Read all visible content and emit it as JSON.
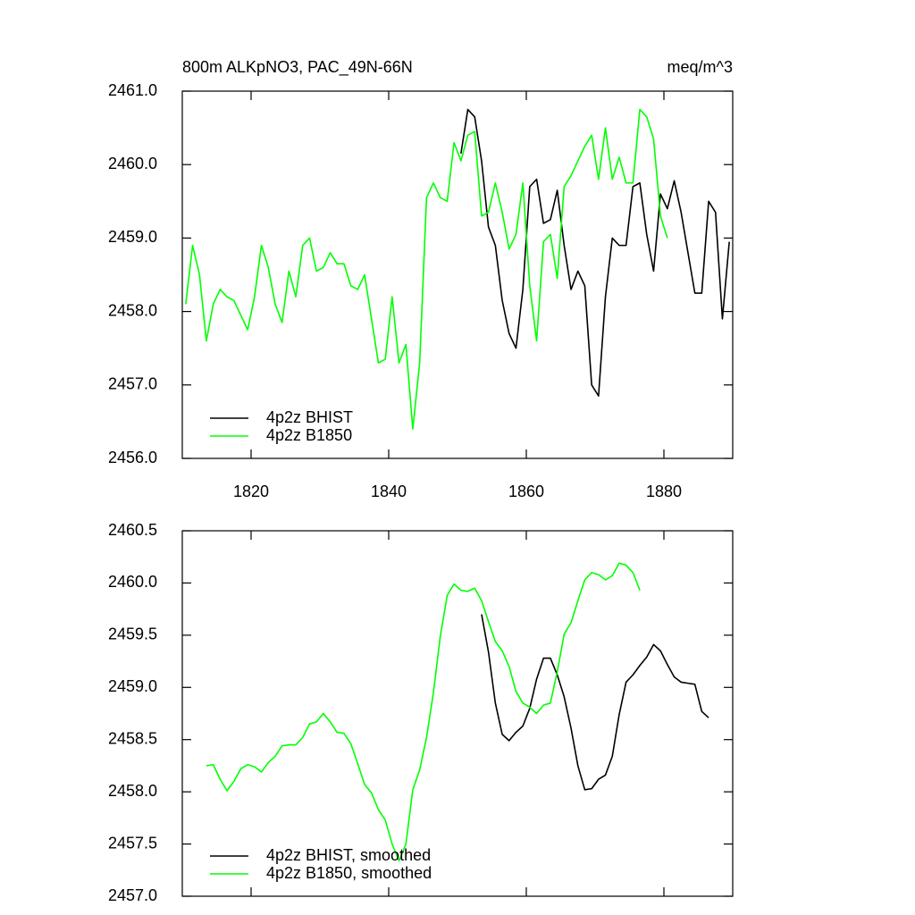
{
  "chart_data": [
    {
      "type": "line",
      "title": "800m ALKpNO3, PAC_49N-66N",
      "units": "meq/m^3",
      "xlim": [
        1810,
        1890
      ],
      "xticks": [
        1820,
        1840,
        1860,
        1880
      ],
      "xtick_labels": true,
      "ylim": [
        2456,
        2461
      ],
      "yticks": [
        {
          "value": 2456,
          "label": "2456.0"
        },
        {
          "value": 2457,
          "label": "2457.0"
        },
        {
          "value": 2458,
          "label": "2458.0"
        },
        {
          "value": 2459,
          "label": "2459.0"
        },
        {
          "value": 2460,
          "label": "2460.0"
        },
        {
          "value": 2461,
          "label": "2461.0"
        }
      ],
      "legend": "bottom-left",
      "series": [
        {
          "name": "4p2z BHIST",
          "color": "#000000",
          "x": [
            1850.5,
            1851.5,
            1852.5,
            1853.5,
            1854.5,
            1855.5,
            1856.5,
            1857.5,
            1858.5,
            1859.5,
            1860.5,
            1861.5,
            1862.5,
            1863.5,
            1864.5,
            1865.5,
            1866.5,
            1867.5,
            1868.5,
            1869.5,
            1870.5,
            1871.5,
            1872.5,
            1873.5,
            1874.5,
            1875.5,
            1876.5,
            1877.5,
            1878.5,
            1879.5,
            1880.5,
            1881.5,
            1882.5,
            1883.5,
            1884.5,
            1885.5,
            1886.5,
            1887.5,
            1888.5,
            1889.5
          ],
          "values": [
            2460.15,
            2460.75,
            2460.65,
            2460.05,
            2459.15,
            2458.9,
            2458.15,
            2457.7,
            2457.5,
            2458.3,
            2459.7,
            2459.8,
            2459.2,
            2459.25,
            2459.65,
            2458.9,
            2458.3,
            2458.55,
            2458.35,
            2457.0,
            2456.85,
            2458.2,
            2459.0,
            2458.9,
            2458.9,
            2459.7,
            2459.75,
            2459.05,
            2458.55,
            2459.6,
            2459.4,
            2459.78,
            2459.35,
            2458.8,
            2458.25,
            2458.25,
            2459.5,
            2459.35,
            2457.9,
            2458.95
          ]
        },
        {
          "name": "4p2z B1850",
          "color": "#00ff00",
          "x": [
            1810.5,
            1811.5,
            1812.5,
            1813.5,
            1814.5,
            1815.5,
            1816.5,
            1817.5,
            1818.5,
            1819.5,
            1820.5,
            1821.5,
            1822.5,
            1823.5,
            1824.5,
            1825.5,
            1826.5,
            1827.5,
            1828.5,
            1829.5,
            1830.5,
            1831.5,
            1832.5,
            1833.5,
            1834.5,
            1835.5,
            1836.5,
            1837.5,
            1838.5,
            1839.5,
            1840.5,
            1841.5,
            1842.5,
            1843.5,
            1844.5,
            1845.5,
            1846.5,
            1847.5,
            1848.5,
            1849.5,
            1850.5,
            1851.5,
            1852.5,
            1853.5,
            1854.5,
            1855.5,
            1856.5,
            1857.5,
            1858.5,
            1859.5,
            1860.5,
            1861.5,
            1862.5,
            1863.5,
            1864.5,
            1865.5,
            1866.5,
            1867.5,
            1868.5,
            1869.5,
            1870.5,
            1871.5,
            1872.5,
            1873.5,
            1874.5,
            1875.5,
            1876.5,
            1877.5,
            1878.5,
            1879.5,
            1880.5
          ],
          "values": [
            2458.1,
            2458.9,
            2458.5,
            2457.6,
            2458.1,
            2458.3,
            2458.2,
            2458.15,
            2457.95,
            2457.75,
            2458.2,
            2458.9,
            2458.6,
            2458.1,
            2457.85,
            2458.55,
            2458.2,
            2458.9,
            2459.0,
            2458.55,
            2458.6,
            2458.8,
            2458.65,
            2458.65,
            2458.35,
            2458.3,
            2458.5,
            2457.9,
            2457.3,
            2457.35,
            2458.2,
            2457.3,
            2457.55,
            2456.4,
            2457.3,
            2459.55,
            2459.75,
            2459.55,
            2459.5,
            2460.3,
            2460.05,
            2460.4,
            2460.45,
            2459.3,
            2459.35,
            2459.75,
            2459.35,
            2458.85,
            2459.05,
            2459.75,
            2458.35,
            2457.6,
            2458.95,
            2459.05,
            2458.45,
            2459.7,
            2459.85,
            2460.05,
            2460.25,
            2460.4,
            2459.8,
            2460.5,
            2459.8,
            2460.1,
            2459.75,
            2459.75,
            2460.75,
            2460.65,
            2460.35,
            2459.3,
            2459.0
          ]
        }
      ]
    },
    {
      "type": "line",
      "xlim": [
        1810,
        1890
      ],
      "xticks": [
        1820,
        1840,
        1860,
        1880
      ],
      "xtick_labels": false,
      "ylim": [
        2457,
        2460.5
      ],
      "yticks": [
        {
          "value": 2457,
          "label": "2457.0"
        },
        {
          "value": 2457.5,
          "label": "2457.5"
        },
        {
          "value": 2458,
          "label": "2458.0"
        },
        {
          "value": 2458.5,
          "label": "2458.5"
        },
        {
          "value": 2459,
          "label": "2459.0"
        },
        {
          "value": 2459.5,
          "label": "2459.5"
        },
        {
          "value": 2460,
          "label": "2460.0"
        },
        {
          "value": 2460.5,
          "label": "2460.5"
        }
      ],
      "legend": "bottom-left",
      "series": [
        {
          "name": "4p2z BHIST, smoothed",
          "color": "#000000",
          "x": [
            1853.5,
            1854.5,
            1855.5,
            1856.5,
            1857.5,
            1858.5,
            1859.5,
            1860.5,
            1861.5,
            1862.5,
            1863.5,
            1864.5,
            1865.5,
            1866.5,
            1867.5,
            1868.5,
            1869.5,
            1870.5,
            1871.5,
            1872.5,
            1873.5,
            1874.5,
            1875.5,
            1876.5,
            1877.5,
            1878.5,
            1879.5,
            1880.5,
            1881.5,
            1882.5,
            1883.5,
            1884.5,
            1885.5,
            1886.5
          ],
          "values": [
            2459.7,
            2459.34,
            2458.85,
            2458.55,
            2458.49,
            2458.57,
            2458.63,
            2458.8,
            2459.08,
            2459.28,
            2459.28,
            2459.12,
            2458.91,
            2458.61,
            2458.25,
            2458.02,
            2458.03,
            2458.12,
            2458.16,
            2458.34,
            2458.74,
            2459.05,
            2459.12,
            2459.21,
            2459.29,
            2459.41,
            2459.35,
            2459.22,
            2459.1,
            2459.05,
            2459.04,
            2459.03,
            2458.77,
            2458.71
          ]
        },
        {
          "name": "4p2z B1850, smoothed",
          "color": "#00ff00",
          "x": [
            1813.5,
            1814.5,
            1815.5,
            1816.5,
            1817.5,
            1818.5,
            1819.5,
            1820.5,
            1821.5,
            1822.5,
            1823.5,
            1824.5,
            1825.5,
            1826.5,
            1827.5,
            1828.5,
            1829.5,
            1830.5,
            1831.5,
            1832.5,
            1833.5,
            1834.5,
            1835.5,
            1836.5,
            1837.5,
            1838.5,
            1839.5,
            1840.5,
            1841.5,
            1842.5,
            1843.5,
            1844.5,
            1845.5,
            1846.5,
            1847.5,
            1848.5,
            1849.5,
            1850.5,
            1851.5,
            1852.5,
            1853.5,
            1854.5,
            1855.5,
            1856.5,
            1857.5,
            1858.5,
            1859.5,
            1860.5,
            1861.5,
            1862.5,
            1863.5,
            1864.5,
            1865.5,
            1866.5,
            1867.5,
            1868.5,
            1869.5,
            1870.5,
            1871.5,
            1872.5,
            1873.5,
            1874.5,
            1875.5,
            1876.5
          ],
          "values": [
            2458.25,
            2458.26,
            2458.12,
            2458.01,
            2458.1,
            2458.22,
            2458.26,
            2458.24,
            2458.19,
            2458.28,
            2458.34,
            2458.44,
            2458.45,
            2458.45,
            2458.52,
            2458.65,
            2458.67,
            2458.75,
            2458.67,
            2458.57,
            2458.56,
            2458.46,
            2458.27,
            2458.07,
            2457.99,
            2457.83,
            2457.73,
            2457.5,
            2457.34,
            2457.5,
            2458.02,
            2458.21,
            2458.52,
            2458.95,
            2459.49,
            2459.88,
            2459.99,
            2459.93,
            2459.92,
            2459.95,
            2459.83,
            2459.63,
            2459.44,
            2459.35,
            2459.2,
            2458.96,
            2458.85,
            2458.81,
            2458.75,
            2458.83,
            2458.85,
            2459.15,
            2459.51,
            2459.62,
            2459.83,
            2460.03,
            2460.1,
            2460.08,
            2460.03,
            2460.07,
            2460.19,
            2460.17,
            2460.1,
            2459.93
          ]
        }
      ]
    }
  ]
}
